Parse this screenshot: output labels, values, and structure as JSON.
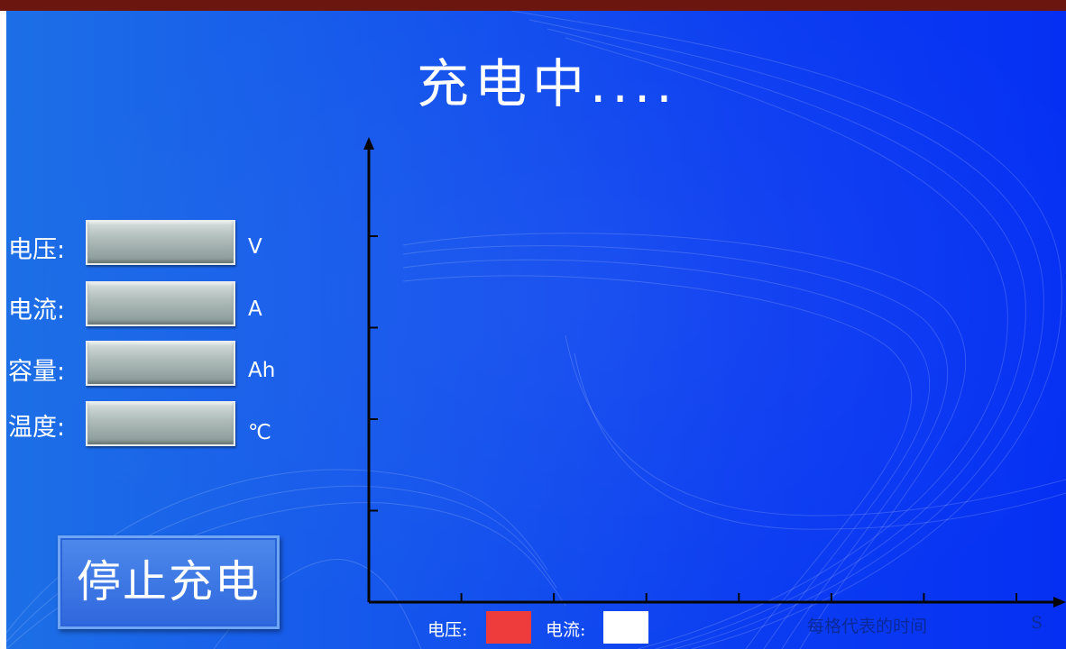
{
  "screen": {
    "title": "充电中....",
    "colors": {
      "background": "#1557ec",
      "value_box": "#aebbb9",
      "voltage_swatch": "#ee3b3b",
      "current_swatch": "#ffffff",
      "frame_top": "#6b1710"
    }
  },
  "readings": {
    "voltage": {
      "label": "电压:",
      "unit": "V",
      "value": ""
    },
    "current": {
      "label": "电流:",
      "unit": "A",
      "value": ""
    },
    "capacity": {
      "label": "容量:",
      "unit": "Ah",
      "value": ""
    },
    "temperature": {
      "label": "温度:",
      "unit": "℃",
      "value": ""
    }
  },
  "stop_button": {
    "label": "停止充电"
  },
  "chart": {
    "legend_voltage": "电压:",
    "legend_current": "电流:",
    "time_label": "每格代表的时间",
    "time_unit": "S"
  },
  "chart_data": {
    "type": "line",
    "title": "",
    "xlabel": "每格代表的时间",
    "x_unit": "S",
    "ylabel": "",
    "series": [
      {
        "name": "电压",
        "color": "#ee3b3b",
        "values": []
      },
      {
        "name": "电流",
        "color": "#ffffff",
        "values": []
      }
    ],
    "x_ticks": 7,
    "y_ticks": 4,
    "grid": false,
    "legend": "bottom"
  }
}
